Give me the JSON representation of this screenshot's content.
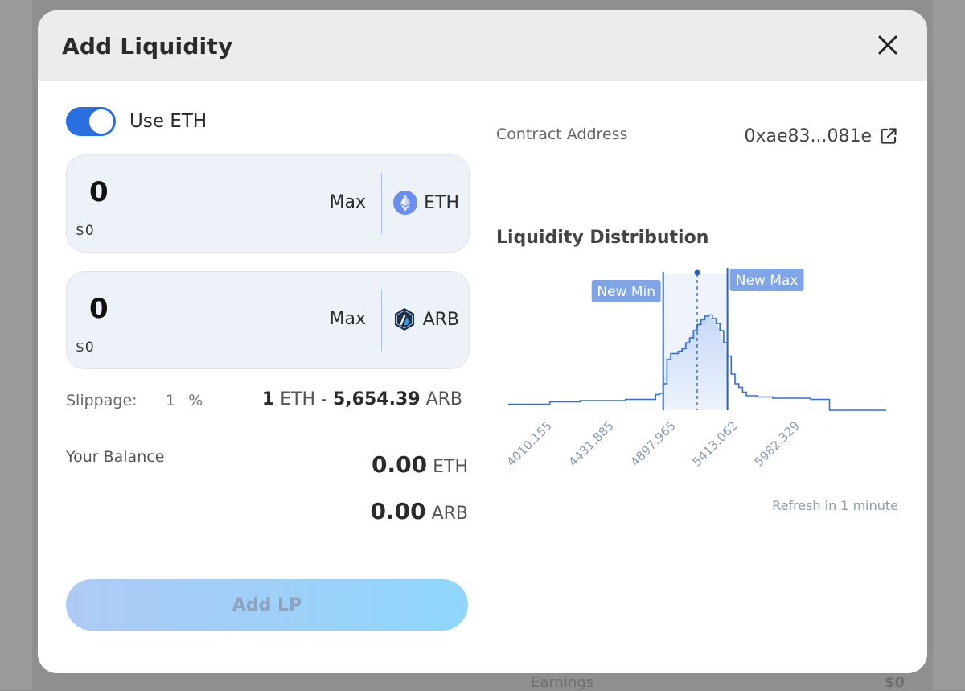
{
  "backdrop": {
    "bottom_text": "Earnings",
    "bottom_value": "$0"
  },
  "modal": {
    "title": "Add Liquidity"
  },
  "use_eth": {
    "label": "Use ETH",
    "enabled": true
  },
  "token_inputs": [
    {
      "value": "0",
      "usd": "$0",
      "max_label": "Max",
      "symbol": "ETH",
      "icon": "ethereum-icon"
    },
    {
      "value": "0",
      "usd": "$0",
      "max_label": "Max",
      "symbol": "ARB",
      "icon": "arbitrum-icon"
    }
  ],
  "slippage": {
    "label": "Slippage:",
    "value": "1",
    "unit": "%"
  },
  "rate": {
    "left_amount": "1",
    "left_symbol": "ETH",
    "separator": "-",
    "right_amount": "5,654.39",
    "right_symbol": "ARB"
  },
  "balance": {
    "label": "Your Balance",
    "lines": [
      {
        "amount": "0.00",
        "symbol": "ETH"
      },
      {
        "amount": "0.00",
        "symbol": "ARB"
      }
    ]
  },
  "add_lp_label": "Add LP",
  "contract": {
    "label": "Contract Address",
    "address": "0xae83...081e"
  },
  "distribution_title": "Liquidity Distribution",
  "refresh_text": "Refresh in 1 minute",
  "colors": {
    "accent": "#2a6fe0",
    "chart_line": "#2f6fd6",
    "range_fill": "#d9e6fb",
    "tag_bg": "#7fa5e6"
  },
  "chart_data": {
    "type": "area",
    "x_tick_labels": [
      "4010.155",
      "4431.885",
      "4897.965",
      "5413.062",
      "5982.329"
    ],
    "range_tags": {
      "min": "New Min",
      "max": "New Max"
    },
    "profile": [
      [
        0.0,
        0.05
      ],
      [
        0.1,
        0.05
      ],
      [
        0.11,
        0.07
      ],
      [
        0.18,
        0.07
      ],
      [
        0.19,
        0.08
      ],
      [
        0.3,
        0.08
      ],
      [
        0.31,
        0.09
      ],
      [
        0.38,
        0.09
      ],
      [
        0.39,
        0.13
      ],
      [
        0.4,
        0.14
      ],
      [
        0.41,
        0.22
      ],
      [
        0.42,
        0.42
      ],
      [
        0.43,
        0.47
      ],
      [
        0.45,
        0.49
      ],
      [
        0.46,
        0.51
      ],
      [
        0.47,
        0.56
      ],
      [
        0.48,
        0.6
      ],
      [
        0.49,
        0.66
      ],
      [
        0.5,
        0.71
      ],
      [
        0.51,
        0.75
      ],
      [
        0.52,
        0.78
      ],
      [
        0.53,
        0.79
      ],
      [
        0.54,
        0.76
      ],
      [
        0.55,
        0.72
      ],
      [
        0.56,
        0.66
      ],
      [
        0.57,
        0.56
      ],
      [
        0.58,
        0.45
      ],
      [
        0.59,
        0.3
      ],
      [
        0.6,
        0.22
      ],
      [
        0.61,
        0.19
      ],
      [
        0.62,
        0.15
      ],
      [
        0.63,
        0.12
      ],
      [
        0.66,
        0.11
      ],
      [
        0.7,
        0.1
      ],
      [
        0.8,
        0.09
      ],
      [
        0.84,
        0.09
      ],
      [
        0.85,
        0.0
      ],
      [
        1.0,
        0.0
      ]
    ],
    "min_pos": 0.41,
    "current_pos": 0.5,
    "max_pos": 0.58
  }
}
